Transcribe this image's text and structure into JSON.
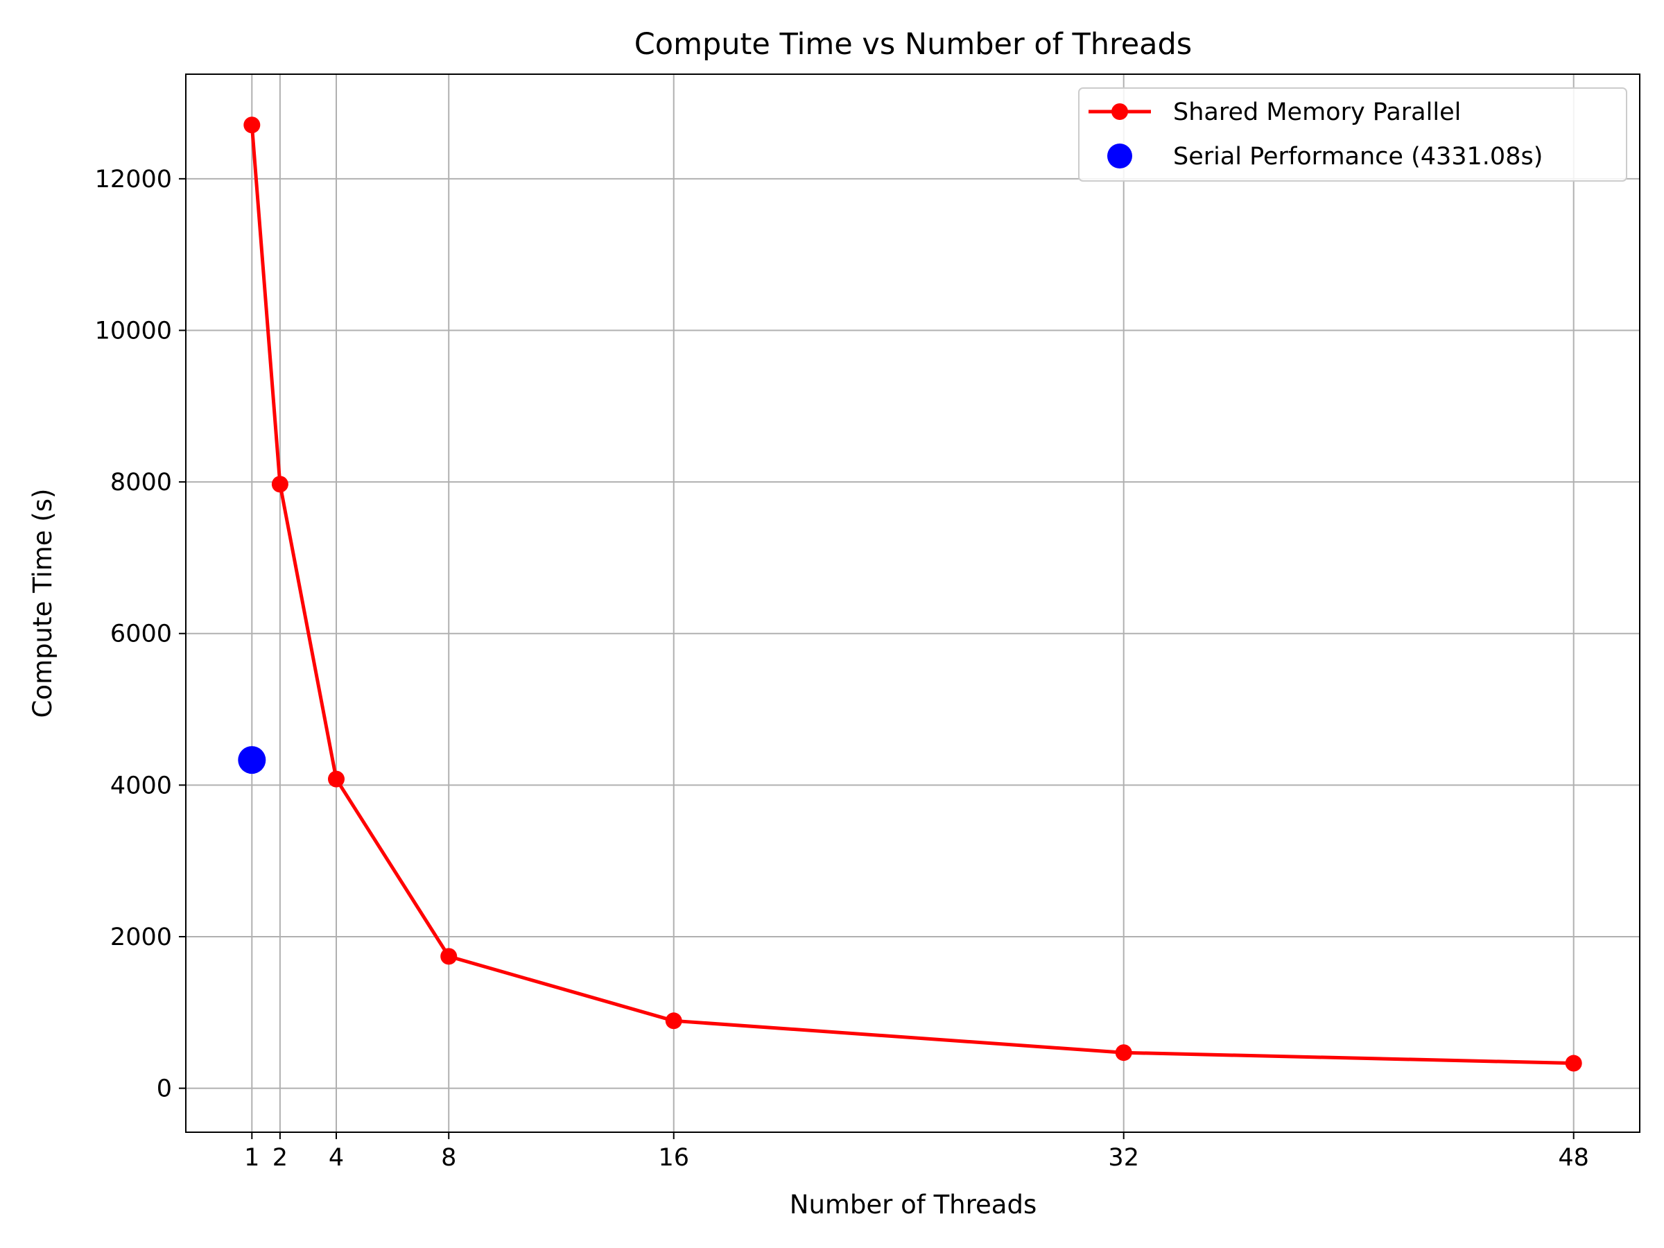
{
  "chart_data": {
    "type": "line",
    "title": "Compute Time vs Number of Threads",
    "xlabel": "Number of Threads",
    "ylabel": "Compute Time (s)",
    "xlim": [
      -1.35,
      50.35
    ],
    "ylim": [
      -580,
      13380
    ],
    "x_ticks": [
      1,
      2,
      4,
      8,
      16,
      32,
      48
    ],
    "y_ticks": [
      0,
      2000,
      4000,
      6000,
      8000,
      10000,
      12000
    ],
    "grid": true,
    "legend_position": "top-right",
    "series": [
      {
        "name": "Shared Memory Parallel",
        "color": "#ff0000",
        "marker": "circle",
        "x": [
          1,
          2,
          4,
          8,
          16,
          32,
          48
        ],
        "y": [
          12710,
          7970,
          4080,
          1740,
          890,
          470,
          330
        ]
      },
      {
        "name": "Serial Performance (4331.08s)",
        "color": "#0000ff",
        "marker": "large-circle",
        "x": [
          1
        ],
        "y": [
          4331.08
        ]
      }
    ]
  }
}
